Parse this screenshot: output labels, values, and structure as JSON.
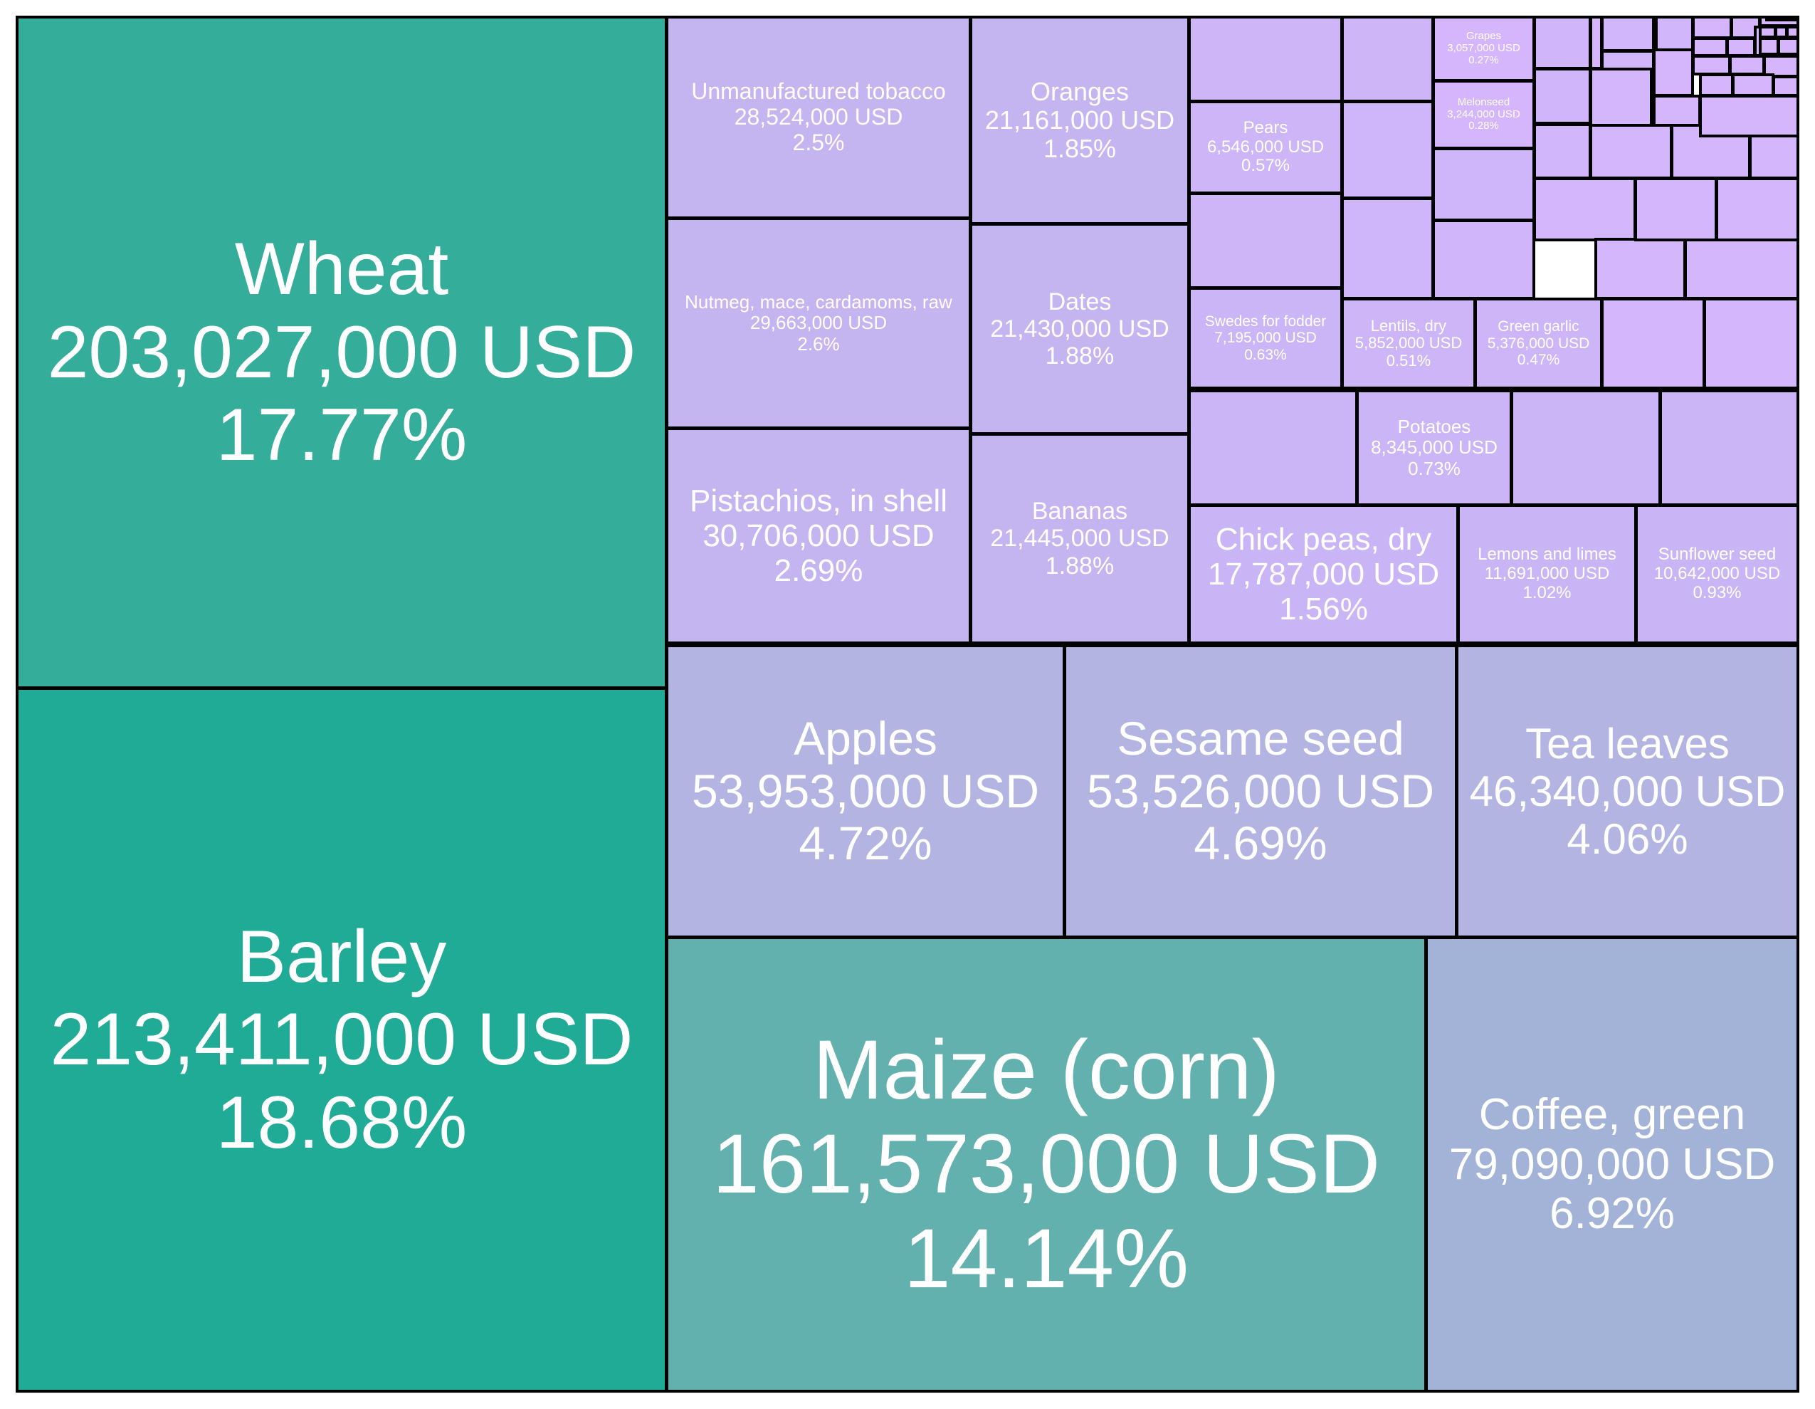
{
  "colors": {
    "border": "#000000",
    "text": "#ffffff",
    "teal_dark": "#1fab96",
    "teal": "#34ad9a",
    "teal_light": "#63b1ae",
    "blue_gray": "#a2b3d7",
    "lavender_blue": "#b3b4e2",
    "lavender": "#c4b5f1",
    "light_purple": "#d5b6fd"
  },
  "chart_data": {
    "type": "treemap",
    "unit": "USD",
    "items": [
      {
        "label": "Barley",
        "value_text": "213,411,000 USD",
        "pct_text": "18.68%",
        "value": 213411000,
        "pct": 18.68,
        "color": "#1fab96"
      },
      {
        "label": "Wheat",
        "value_text": "203,027,000 USD",
        "pct_text": "17.77%",
        "value": 203027000,
        "pct": 17.77,
        "color": "#34ad9a"
      },
      {
        "label": "Maize (corn)",
        "value_text": "161,573,000 USD",
        "pct_text": "14.14%",
        "value": 161573000,
        "pct": 14.14,
        "color": "#63b1ae"
      },
      {
        "label": "Coffee, green",
        "value_text": "79,090,000 USD",
        "pct_text": "6.92%",
        "value": 79090000,
        "pct": 6.92,
        "color": "#a2b3d7"
      },
      {
        "label": "Apples",
        "value_text": "53,953,000 USD",
        "pct_text": "4.72%",
        "value": 53953000,
        "pct": 4.72,
        "color": "#b3b4e2"
      },
      {
        "label": "Sesame seed",
        "value_text": "53,526,000 USD",
        "pct_text": "4.69%",
        "value": 53526000,
        "pct": 4.69,
        "color": "#b3b4e2"
      },
      {
        "label": "Tea leaves",
        "value_text": "46,340,000 USD",
        "pct_text": "4.06%",
        "value": 46340000,
        "pct": 4.06,
        "color": "#b3b4e2"
      },
      {
        "label": "Pistachios, in shell",
        "value_text": "30,706,000 USD",
        "pct_text": "2.69%",
        "value": 30706000,
        "pct": 2.69,
        "color": "#c4b5f1"
      },
      {
        "label": "Nutmeg, mace, cardamoms, raw",
        "value_text": "29,663,000 USD",
        "pct_text": "2.6%",
        "value": 29663000,
        "pct": 2.6,
        "color": "#c4b5f1"
      },
      {
        "label": "Unmanufactured tobacco",
        "value_text": "28,524,000 USD",
        "pct_text": "2.5%",
        "value": 28524000,
        "pct": 2.5,
        "color": "#c4b5f1"
      },
      {
        "label": "Bananas",
        "value_text": "21,445,000 USD",
        "pct_text": "1.88%",
        "value": 21445000,
        "pct": 1.88,
        "color": "#c4b5f1"
      },
      {
        "label": "Dates",
        "value_text": "21,430,000 USD",
        "pct_text": "1.88%",
        "value": 21430000,
        "pct": 1.88,
        "color": "#c4b5f1"
      },
      {
        "label": "Oranges",
        "value_text": "21,161,000 USD",
        "pct_text": "1.85%",
        "value": 21161000,
        "pct": 1.85,
        "color": "#c4b5f1"
      },
      {
        "label": "Chick peas, dry",
        "value_text": "17,787,000 USD",
        "pct_text": "1.56%",
        "value": 17787000,
        "pct": 1.56,
        "color": "#c9b5f5"
      },
      {
        "label": "Lemons and limes",
        "value_text": "11,691,000 USD",
        "pct_text": "1.02%",
        "value": 11691000,
        "pct": 1.02,
        "color": "#c9b5f5"
      },
      {
        "label": "Sunflower seed",
        "value_text": "10,642,000 USD",
        "pct_text": "0.93%",
        "value": 10642000,
        "pct": 0.93,
        "color": "#c9b5f5"
      },
      {
        "label": "Potatoes",
        "value_text": "8,345,000 USD",
        "pct_text": "0.73%",
        "value": 8345000,
        "pct": 0.73,
        "color": "#ccb5f7"
      },
      {
        "label": "Swedes for fodder",
        "value_text": "7,195,000 USD",
        "pct_text": "0.63%",
        "value": 7195000,
        "pct": 0.63,
        "color": "#ccb5f7"
      },
      {
        "label": "Pears",
        "value_text": "6,546,000 USD",
        "pct_text": "0.57%",
        "value": 6546000,
        "pct": 0.57,
        "color": "#ceb5f8"
      },
      {
        "label": "Lentils, dry",
        "value_text": "5,852,000 USD",
        "pct_text": "0.51%",
        "value": 5852000,
        "pct": 0.51,
        "color": "#ceb5f8"
      },
      {
        "label": "Green garlic",
        "value_text": "5,376,000 USD",
        "pct_text": "0.47%",
        "value": 5376000,
        "pct": 0.47,
        "color": "#ceb5f8"
      },
      {
        "label": "Melonseed",
        "value_text": "3,244,000 USD",
        "pct_text": "0.28%",
        "value": 3244000,
        "pct": 0.28,
        "color": "#d5b6fd"
      },
      {
        "label": "Grapes",
        "value_text": "3,057,000 USD",
        "pct_text": "0.27%",
        "value": 3057000,
        "pct": 0.27,
        "color": "#d5b6fd"
      },
      {
        "label": "",
        "value_text": "",
        "pct_text": "",
        "color": "#ccb5f7"
      },
      {
        "label": "",
        "value_text": "",
        "pct_text": "",
        "color": "#ccb5f7"
      },
      {
        "label": "",
        "value_text": "",
        "pct_text": "",
        "color": "#ccb5f7"
      },
      {
        "label": "",
        "value_text": "",
        "pct_text": "",
        "color": "#ceb5f8"
      },
      {
        "label": "",
        "value_text": "",
        "pct_text": "",
        "color": "#ceb5f8"
      },
      {
        "label": "",
        "value_text": "",
        "pct_text": "",
        "color": "#ceb5f8"
      },
      {
        "label": "",
        "value_text": "",
        "pct_text": "",
        "color": "#cfb5f9"
      },
      {
        "label": "",
        "value_text": "",
        "pct_text": "",
        "color": "#cfb5f9"
      },
      {
        "label": "",
        "value_text": "",
        "pct_text": "",
        "color": "#cfb5f9"
      },
      {
        "label": "",
        "value_text": "",
        "pct_text": "",
        "color": "#d0b5fa"
      },
      {
        "label": "",
        "value_text": "",
        "pct_text": "",
        "color": "#d0b5fa"
      },
      {
        "label": "",
        "value_text": "",
        "pct_text": "",
        "color": "#d0b5fa"
      },
      {
        "label": "",
        "value_text": "",
        "pct_text": "",
        "color": "#d2b6fb"
      },
      {
        "label": "",
        "value_text": "",
        "pct_text": "",
        "color": "#d2b6fb"
      },
      {
        "label": "",
        "value_text": "",
        "pct_text": "",
        "color": "#d2b6fb"
      },
      {
        "label": "",
        "value_text": "",
        "pct_text": "",
        "color": "#d2b6fb"
      },
      {
        "label": "",
        "value_text": "",
        "pct_text": "",
        "color": "#d3b6fc"
      },
      {
        "label": "",
        "value_text": "",
        "pct_text": "",
        "color": "#d3b6fc"
      },
      {
        "label": "",
        "value_text": "",
        "pct_text": "",
        "color": "#d3b6fc"
      },
      {
        "label": "",
        "value_text": "",
        "pct_text": "",
        "color": "#d3b6fc"
      },
      {
        "label": "",
        "value_text": "",
        "pct_text": "",
        "color": "#d3b6fc"
      },
      {
        "label": "",
        "value_text": "",
        "pct_text": "",
        "color": "#d3b6fc"
      },
      {
        "label": "",
        "value_text": "",
        "pct_text": "",
        "color": "#d4b6fc"
      },
      {
        "label": "",
        "value_text": "",
        "pct_text": "",
        "color": "#d4b6fc"
      },
      {
        "label": "",
        "value_text": "",
        "pct_text": "",
        "color": "#d4b6fc"
      },
      {
        "label": "",
        "value_text": "",
        "pct_text": "",
        "color": "#d4b6fc"
      },
      {
        "label": "",
        "value_text": "",
        "pct_text": "",
        "color": "#d4b6fc"
      },
      {
        "label": "",
        "value_text": "",
        "pct_text": "",
        "color": "#d5b6fd"
      },
      {
        "label": "",
        "value_text": "",
        "pct_text": "",
        "color": "#d5b6fd"
      },
      {
        "label": "",
        "value_text": "",
        "pct_text": "",
        "color": "#d5b6fd"
      },
      {
        "label": "",
        "value_text": "",
        "pct_text": "",
        "color": "#d5b6fd"
      },
      {
        "label": "",
        "value_text": "",
        "pct_text": "",
        "color": "#d5b6fd"
      },
      {
        "label": "",
        "value_text": "",
        "pct_text": "",
        "color": "#d5b6fd"
      },
      {
        "label": "",
        "value_text": "",
        "pct_text": "",
        "color": "#d5b6fd"
      },
      {
        "label": "",
        "value_text": "",
        "pct_text": "",
        "color": "#d5b6fd"
      },
      {
        "label": "",
        "value_text": "",
        "pct_text": "",
        "color": "#d5b6fd"
      },
      {
        "label": "",
        "value_text": "",
        "pct_text": "",
        "color": "#d5b6fd"
      },
      {
        "label": "",
        "value_text": "",
        "pct_text": "",
        "color": "#d5b6fd"
      },
      {
        "label": "",
        "value_text": "",
        "pct_text": "",
        "color": "#d5b6fd"
      },
      {
        "label": "",
        "value_text": "",
        "pct_text": "",
        "color": "#d5b6fd"
      },
      {
        "label": "",
        "value_text": "",
        "pct_text": "",
        "color": "#d5b6fd"
      },
      {
        "label": "",
        "value_text": "",
        "pct_text": "",
        "color": "#d5b6fd"
      },
      {
        "label": "",
        "value_text": "",
        "pct_text": "",
        "color": "#d5b6fd"
      },
      {
        "label": "",
        "value_text": "",
        "pct_text": "",
        "color": "#d5b6fd"
      },
      {
        "label": "",
        "value_text": "",
        "pct_text": "",
        "color": "#d5b6fd"
      },
      {
        "label": "",
        "value_text": "",
        "pct_text": "",
        "color": "#d5b6fd"
      },
      {
        "label": "",
        "value_text": "",
        "pct_text": "",
        "color": "#d5b6fd"
      },
      {
        "label": "",
        "value_text": "",
        "pct_text": "",
        "color": "#d5b6fd"
      },
      {
        "label": "",
        "value_text": "",
        "pct_text": "",
        "color": "#d5b6fd"
      },
      {
        "label": "",
        "value_text": "",
        "pct_text": "",
        "color": "#d5b6fd"
      },
      {
        "label": "",
        "value_text": "",
        "pct_text": "",
        "color": "#d5b6fd"
      }
    ]
  }
}
